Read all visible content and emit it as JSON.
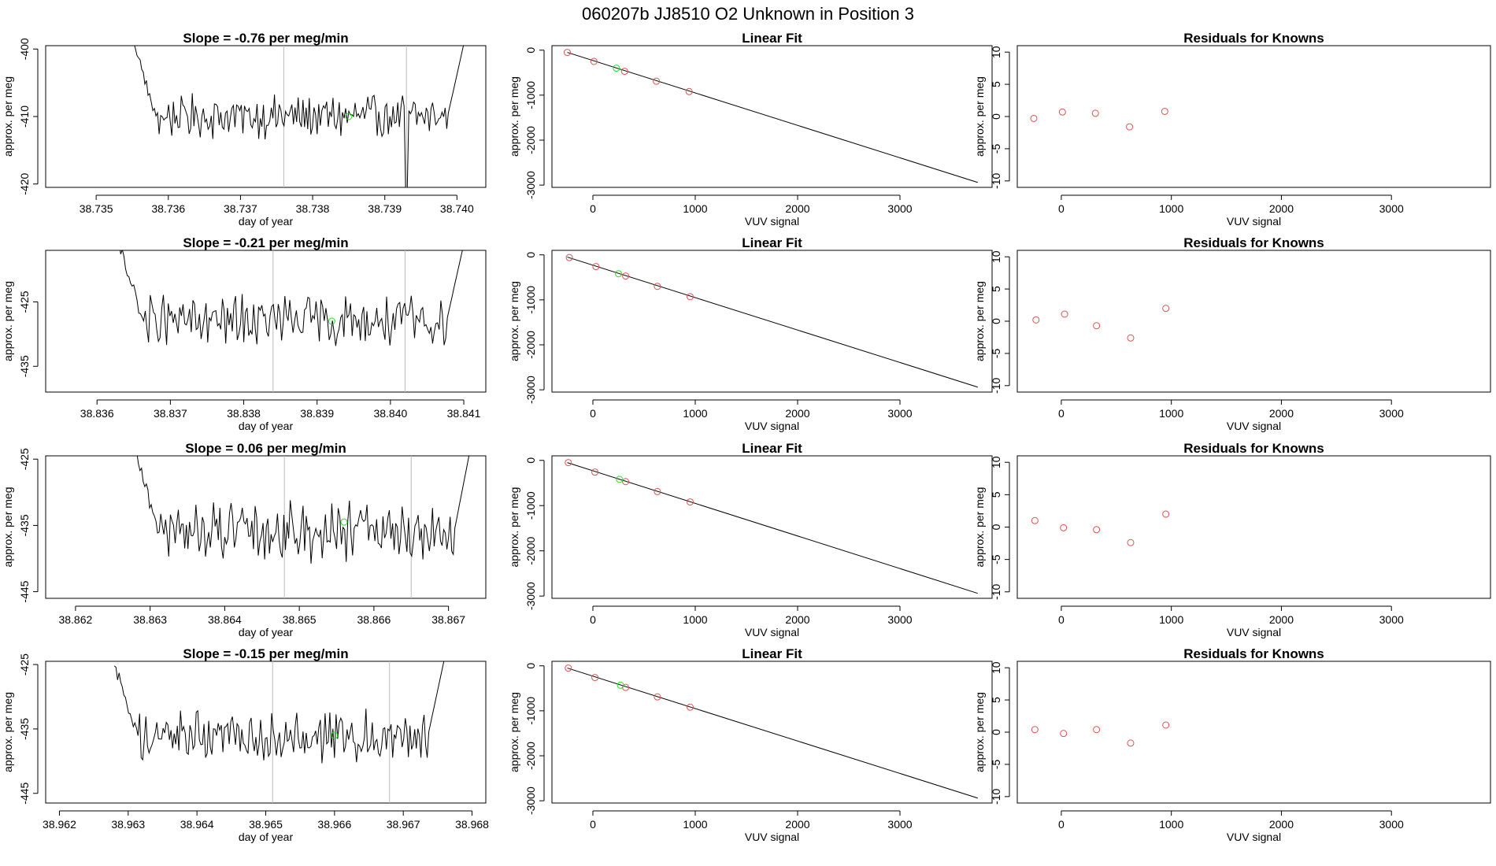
{
  "figure_title": "060207b     JJ8510    O2 Unknown in Position  3",
  "colors": {
    "line": "#000000",
    "known_point": "#d9534f",
    "unknown_point": "#22dd22",
    "marker_line": "#bbbbbb",
    "frame": "#000000"
  },
  "chart_data": [
    {
      "type": "line",
      "panel": "slope",
      "title": "Slope =  -0.76  per meg/min",
      "xlabel": "day of year",
      "ylabel": "approx. per meg",
      "xlim": [
        38.7343,
        38.7404
      ],
      "ylim": [
        -420.5,
        -399.5
      ],
      "xticks": [
        38.735,
        38.736,
        38.737,
        38.738,
        38.739,
        38.74
      ],
      "xtick_labels": [
        "38.735",
        "38.736",
        "38.737",
        "38.738",
        "38.739",
        "38.740"
      ],
      "yticks": [
        -420,
        -410,
        -400
      ],
      "ytick_labels": [
        "-420",
        "-410",
        "-400"
      ],
      "trace_x_range": [
        38.7355,
        38.7401
      ],
      "trace_level": -410,
      "trace_noise": 1.6,
      "trace_start": -398,
      "trace_end": -399,
      "dip": {
        "x": 38.7393,
        "value": -421
      },
      "vlines": [
        38.7376,
        38.7393
      ],
      "highlight": {
        "x": 38.7385,
        "y": -410
      }
    },
    {
      "type": "scatter_line",
      "panel": "fit",
      "title": "Linear Fit",
      "xlabel": "VUV signal",
      "ylabel": "approx. per meg",
      "xlim": [
        -400,
        3900
      ],
      "ylim": [
        -3050,
        100
      ],
      "xticks": [
        0,
        1000,
        2000,
        3000
      ],
      "xtick_labels": [
        "0",
        "1000",
        "2000",
        "3000"
      ],
      "yticks": [
        -3000,
        -2000,
        -1000,
        0
      ],
      "ytick_labels": [
        "-3000",
        "-2000",
        "-1000",
        "0"
      ],
      "fit_line": {
        "x": [
          -250,
          3760
        ],
        "y": [
          -50,
          -2940
        ]
      },
      "known_x": [
        -250,
        10,
        310,
        620,
        940
      ],
      "known_y": [
        -50,
        -250,
        -470,
        -690,
        -920
      ],
      "unknown_x": [
        230
      ],
      "unknown_y": [
        -400
      ]
    },
    {
      "type": "scatter",
      "panel": "residuals",
      "title": "Residuals for Knowns",
      "xlabel": "VUV signal",
      "ylabel": "approx. per meg",
      "xlim": [
        -400,
        3900
      ],
      "ylim": [
        -11,
        11
      ],
      "xticks": [
        0,
        1000,
        2000,
        3000
      ],
      "xtick_labels": [
        "0",
        "1000",
        "2000",
        "3000"
      ],
      "yticks": [
        -10,
        -5,
        0,
        5,
        10
      ],
      "ytick_labels": [
        "-10",
        "-5",
        "0",
        "5",
        "10"
      ],
      "x": [
        -250,
        10,
        310,
        620,
        940
      ],
      "y": [
        -0.3,
        0.7,
        0.5,
        -1.6,
        0.8
      ]
    },
    {
      "type": "line",
      "panel": "slope",
      "title": "Slope =  -0.21  per meg/min",
      "xlabel": "day of year",
      "ylabel": "approx. per meg",
      "xlim": [
        38.8353,
        38.8413
      ],
      "ylim": [
        -439,
        -417
      ],
      "xticks": [
        38.836,
        38.837,
        38.838,
        38.839,
        38.84,
        38.841
      ],
      "xtick_labels": [
        "38.836",
        "38.837",
        "38.838",
        "38.839",
        "38.840",
        "38.841"
      ],
      "yticks": [
        -435,
        -425
      ],
      "ytick_labels": [
        "-435",
        "-425"
      ],
      "trace_x_range": [
        38.8363,
        38.841
      ],
      "trace_level": -428,
      "trace_noise": 2.0,
      "trace_start": -416,
      "trace_end": -416,
      "dip": null,
      "vlines": [
        38.8384,
        38.8402
      ],
      "highlight": {
        "x": 38.8392,
        "y": -428
      }
    },
    {
      "type": "scatter_line",
      "panel": "fit",
      "title": "Linear Fit",
      "xlabel": "VUV signal",
      "ylabel": "approx. per meg",
      "xlim": [
        -400,
        3900
      ],
      "ylim": [
        -3050,
        100
      ],
      "xticks": [
        0,
        1000,
        2000,
        3000
      ],
      "xtick_labels": [
        "0",
        "1000",
        "2000",
        "3000"
      ],
      "yticks": [
        -3000,
        -2000,
        -1000,
        0
      ],
      "ytick_labels": [
        "-3000",
        "-2000",
        "-1000",
        "0"
      ],
      "fit_line": {
        "x": [
          -250,
          3760
        ],
        "y": [
          -50,
          -2940
        ]
      },
      "known_x": [
        -230,
        30,
        320,
        630,
        950
      ],
      "known_y": [
        -60,
        -260,
        -470,
        -700,
        -930
      ],
      "unknown_x": [
        250
      ],
      "unknown_y": [
        -420
      ]
    },
    {
      "type": "scatter",
      "panel": "residuals",
      "title": "Residuals for Knowns",
      "xlabel": "VUV signal",
      "ylabel": "approx. per meg",
      "xlim": [
        -400,
        3900
      ],
      "ylim": [
        -11,
        11
      ],
      "xticks": [
        0,
        1000,
        2000,
        3000
      ],
      "xtick_labels": [
        "0",
        "1000",
        "2000",
        "3000"
      ],
      "yticks": [
        -10,
        -5,
        0,
        5,
        10
      ],
      "ytick_labels": [
        "-10",
        "-5",
        "0",
        "5",
        "10"
      ],
      "x": [
        -230,
        30,
        320,
        630,
        950
      ],
      "y": [
        0.2,
        1.1,
        -0.7,
        -2.6,
        2.0
      ]
    },
    {
      "type": "line",
      "panel": "slope",
      "title": "Slope =  0.06  per meg/min",
      "xlabel": "day of year",
      "ylabel": "approx. per meg",
      "xlim": [
        38.8616,
        38.8675
      ],
      "ylim": [
        -446,
        -424.5
      ],
      "xticks": [
        38.862,
        38.863,
        38.864,
        38.865,
        38.866,
        38.867
      ],
      "xtick_labels": [
        "38.862",
        "38.863",
        "38.864",
        "38.865",
        "38.866",
        "38.867"
      ],
      "yticks": [
        -445,
        -435,
        -425
      ],
      "ytick_labels": [
        "-445",
        "-435",
        "-425"
      ],
      "trace_x_range": [
        38.8628,
        38.8673
      ],
      "trace_level": -436,
      "trace_noise": 2.2,
      "trace_start": -424,
      "trace_end": -423,
      "dip": null,
      "vlines": [
        38.8648,
        38.8665
      ],
      "highlight": {
        "x": 38.8656,
        "y": -434.5
      }
    },
    {
      "type": "scatter_line",
      "panel": "fit",
      "title": "Linear Fit",
      "xlabel": "VUV signal",
      "ylabel": "approx. per meg",
      "xlim": [
        -400,
        3900
      ],
      "ylim": [
        -3050,
        100
      ],
      "xticks": [
        0,
        1000,
        2000,
        3000
      ],
      "xtick_labels": [
        "0",
        "1000",
        "2000",
        "3000"
      ],
      "yticks": [
        -3000,
        -2000,
        -1000,
        0
      ],
      "ytick_labels": [
        "-3000",
        "-2000",
        "-1000",
        "0"
      ],
      "fit_line": {
        "x": [
          -250,
          3760
        ],
        "y": [
          -50,
          -2940
        ]
      },
      "known_x": [
        -240,
        20,
        320,
        630,
        950
      ],
      "known_y": [
        -50,
        -260,
        -470,
        -690,
        -920
      ],
      "unknown_x": [
        260
      ],
      "unknown_y": [
        -420
      ]
    },
    {
      "type": "scatter",
      "panel": "residuals",
      "title": "Residuals for Knowns",
      "xlabel": "VUV signal",
      "ylabel": "approx. per meg",
      "xlim": [
        -400,
        3900
      ],
      "ylim": [
        -11,
        11
      ],
      "xticks": [
        0,
        1000,
        2000,
        3000
      ],
      "xtick_labels": [
        "0",
        "1000",
        "2000",
        "3000"
      ],
      "yticks": [
        -10,
        -5,
        0,
        5,
        10
      ],
      "ytick_labels": [
        "-10",
        "-5",
        "0",
        "5",
        "10"
      ],
      "x": [
        -240,
        20,
        320,
        630,
        950
      ],
      "y": [
        1.0,
        -0.1,
        -0.4,
        -2.4,
        2.0
      ]
    },
    {
      "type": "line",
      "panel": "slope",
      "title": "Slope =  -0.15  per meg/min",
      "xlabel": "day of year",
      "ylabel": "approx. per meg",
      "xlim": [
        38.9618,
        38.9682
      ],
      "ylim": [
        -446.5,
        -424.5
      ],
      "xticks": [
        38.962,
        38.963,
        38.964,
        38.965,
        38.966,
        38.967,
        38.968
      ],
      "xtick_labels": [
        "38.962",
        "38.963",
        "38.964",
        "38.965",
        "38.966",
        "38.967",
        "38.968"
      ],
      "yticks": [
        -445,
        -435,
        -425
      ],
      "ytick_labels": [
        "-445",
        "-435",
        "-425"
      ],
      "trace_x_range": [
        38.9628,
        38.9676
      ],
      "trace_level": -436,
      "trace_noise": 2.0,
      "trace_start": -425,
      "trace_end": -424,
      "dip": null,
      "vlines": [
        38.9651,
        38.9668
      ],
      "highlight": {
        "x": 38.966,
        "y": -436
      }
    },
    {
      "type": "scatter_line",
      "panel": "fit",
      "title": "Linear Fit",
      "xlabel": "VUV signal",
      "ylabel": "approx. per meg",
      "xlim": [
        -400,
        3900
      ],
      "ylim": [
        -3050,
        100
      ],
      "xticks": [
        0,
        1000,
        2000,
        3000
      ],
      "xtick_labels": [
        "0",
        "1000",
        "2000",
        "3000"
      ],
      "yticks": [
        -3000,
        -2000,
        -1000,
        0
      ],
      "ytick_labels": [
        "-3000",
        "-2000",
        "-1000",
        "0"
      ],
      "fit_line": {
        "x": [
          -250,
          3760
        ],
        "y": [
          -50,
          -2940
        ]
      },
      "known_x": [
        -240,
        20,
        320,
        630,
        950
      ],
      "known_y": [
        -50,
        -260,
        -480,
        -690,
        -920
      ],
      "unknown_x": [
        270
      ],
      "unknown_y": [
        -430
      ]
    },
    {
      "type": "scatter",
      "panel": "residuals",
      "title": "Residuals for Knowns",
      "xlabel": "VUV signal",
      "ylabel": "approx. per meg",
      "xlim": [
        -400,
        3900
      ],
      "ylim": [
        -11,
        11
      ],
      "xticks": [
        0,
        1000,
        2000,
        3000
      ],
      "xtick_labels": [
        "0",
        "1000",
        "2000",
        "3000"
      ],
      "yticks": [
        -10,
        -5,
        0,
        5,
        10
      ],
      "ytick_labels": [
        "-10",
        "-5",
        "0",
        "5",
        "10"
      ],
      "x": [
        -240,
        20,
        320,
        630,
        950
      ],
      "y": [
        0.4,
        -0.2,
        0.4,
        -1.7,
        1.1
      ]
    }
  ]
}
